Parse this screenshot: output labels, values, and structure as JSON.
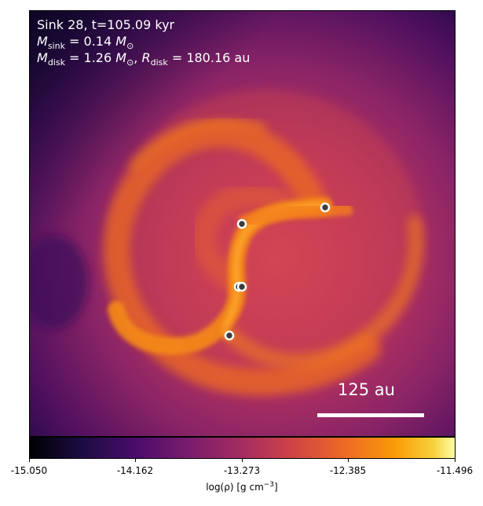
{
  "figure": {
    "info_line1": "Sink 28, t=105.09 kyr",
    "sink_symbol": "M",
    "sink_subscript": "sink",
    "sink_value": "= 0.14",
    "sun_symbol": "M",
    "sun_subscript": "⊙",
    "disk_mass_symbol": "M",
    "disk_mass_subscript": "disk",
    "disk_mass_value": "= 1.26",
    "disk_radius_symbol": "R",
    "disk_radius_subscript": "disk",
    "disk_radius_value": "= 180.16 au",
    "scale_bar_label": "125 au"
  },
  "colorbar": {
    "ticks": [
      "-15.050",
      "-14.162",
      "-13.273",
      "-12.385",
      "-11.496"
    ],
    "label": "log(ρ) [g cm",
    "label_exp": "−3",
    "label_end": "]",
    "colormap": "inferno"
  },
  "colors": {
    "background_dark": "#2a0b4e",
    "disk_mid": "#c8375a",
    "arm_bright": "#f68a18",
    "arm_core": "#fca32a",
    "sink_fill": "#3c3c3c",
    "sink_ring": "#ffffff"
  }
}
